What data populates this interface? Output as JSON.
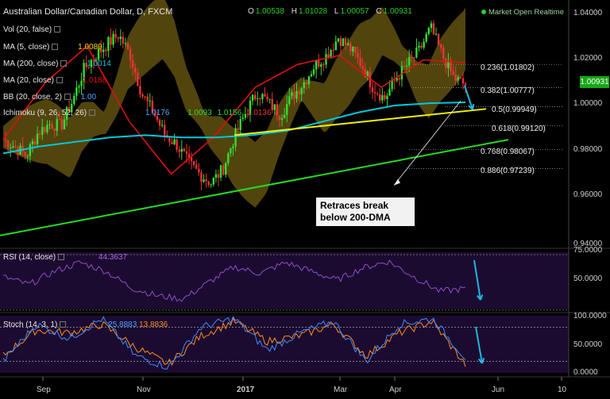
{
  "header": {
    "symbol_label": "Australian Dollar/Canadian Dollar, D, FXCM",
    "ohlc": [
      {
        "k": "O",
        "v": "1.00538"
      },
      {
        "k": "H",
        "v": "1.01028"
      },
      {
        "k": "L",
        "v": "1.00057"
      },
      {
        "k": "C",
        "v": "1.00931"
      }
    ],
    "market_status": "Market Open",
    "data_mode": "Realtime"
  },
  "indicators": {
    "vol": {
      "label": "Vol (20, false)"
    },
    "ma5": {
      "label": "MA (5, close)",
      "value": "1.0089",
      "color": "#ffd700"
    },
    "ma200": {
      "label": "MA (200, close)",
      "value": "1.0014",
      "color": "#00c8d8"
    },
    "ma20": {
      "label": "MA (20, close)",
      "value": "1.0188",
      "color": "#e01010"
    },
    "bb": {
      "label": "BB (20, close, 2)",
      "value": "1.00",
      "color": "#4aa3ff"
    },
    "ichimoku": {
      "label": "Ichimoku (9, 26, 52, 26)",
      "values": [
        "1.0176",
        "1.0093",
        "1.0156",
        "1.0136"
      ]
    },
    "rsi": {
      "label": "RSI (14, close)",
      "value": "44.3637"
    },
    "stoch": {
      "label": "Stoch (14, 3, 1)",
      "k_value": "25.8883",
      "d_value": "13.8836"
    }
  },
  "price_axis": {
    "ticks": [
      "1.04000",
      "1.02000",
      "1.00000",
      "0.98000",
      "0.96000",
      "0.94000"
    ],
    "current_price": "1.00931"
  },
  "rsi_axis": {
    "ticks": [
      "75.0000",
      "50.0000"
    ]
  },
  "stoch_axis": {
    "ticks": [
      "100.0000",
      "50.0000",
      "0.0000"
    ]
  },
  "time_axis": {
    "labels": [
      "Sep",
      "Nov",
      "2017",
      "Mar",
      "Apr",
      "Jun",
      "10"
    ]
  },
  "fibonacci": [
    {
      "label": "0.236(1.01802)"
    },
    {
      "label": "0.382(1.00777)"
    },
    {
      "label": "0.5(0.99949)"
    },
    {
      "label": "0.618(0.99120)"
    },
    {
      "label": "0.768(0.98067)"
    },
    {
      "label": "0.886(0.97239)"
    }
  ],
  "annotation": {
    "line1": "Retraces break",
    "line2": "below 200-DMA"
  },
  "colors": {
    "up": "#33dd33",
    "down": "#ee3333",
    "ma200": "#00c8d8",
    "ma20": "#e01010",
    "ma5": "#ffd700",
    "trend_green": "#22dd22",
    "trend_yellow": "#f2f20a",
    "cloud": "#6e5b12",
    "rsi_bg": "#1c0b30",
    "arrow": "#1fb6e0"
  },
  "chart_data": [
    {
      "type": "candlestick",
      "title": "Australian Dollar/Canadian Dollar, D, FXCM",
      "ylim": [
        0.94,
        1.045
      ],
      "x_labels": [
        "Sep",
        "Nov",
        "2017",
        "Mar",
        "Apr",
        "Jun",
        "10"
      ],
      "anchors_close": [
        [
          "Aug-22",
          0.985
        ],
        [
          "Aug-29",
          0.982
        ],
        [
          "Sep-05",
          0.978
        ],
        [
          "Sep-12",
          0.988
        ],
        [
          "Sep-19",
          0.992
        ],
        [
          "Sep-26",
          0.991
        ],
        [
          "Oct-03",
          1.002
        ],
        [
          "Oct-10",
          1.016
        ],
        [
          "Oct-17",
          1.022
        ],
        [
          "Oct-24",
          1.027
        ],
        [
          "Oct-31",
          1.031
        ],
        [
          "Nov-07",
          1.022
        ],
        [
          "Nov-14",
          1.005
        ],
        [
          "Nov-21",
          0.997
        ],
        [
          "Nov-28",
          0.987
        ],
        [
          "Dec-05",
          0.983
        ],
        [
          "Dec-12",
          0.975
        ],
        [
          "Dec-19",
          0.97
        ],
        [
          "Dec-26",
          0.966
        ],
        [
          "Jan-02",
          0.972
        ],
        [
          "Jan-09",
          0.986
        ],
        [
          "Jan-16",
          0.997
        ],
        [
          "Jan-23",
          1.006
        ],
        [
          "Jan-30",
          1.001
        ],
        [
          "Feb-06",
          0.996
        ],
        [
          "Feb-13",
          1.004
        ],
        [
          "Feb-20",
          1.01
        ],
        [
          "Feb-27",
          1.018
        ],
        [
          "Mar-06",
          1.022
        ],
        [
          "Mar-13",
          1.03
        ],
        [
          "Mar-20",
          1.025
        ],
        [
          "Mar-27",
          1.018
        ],
        [
          "Apr-03",
          1.008
        ],
        [
          "Apr-10",
          1.003
        ],
        [
          "Apr-17",
          1.012
        ],
        [
          "Apr-24",
          1.018
        ],
        [
          "May-01",
          1.024
        ],
        [
          "May-08",
          1.034
        ],
        [
          "May-15",
          1.022
        ],
        [
          "May-22",
          1.012
        ],
        [
          "May-29",
          1.009
        ]
      ],
      "series": [
        {
          "name": "MA (200, close)",
          "values": [
            0.979,
            0.982,
            0.984,
            0.986,
            0.987,
            0.986,
            0.986,
            0.987,
            0.989,
            0.993,
            0.997,
            1.0,
            1.001,
            1.0014
          ]
        },
        {
          "name": "MA (20, close)",
          "values": [
            0.985,
            1.01,
            1.026,
            0.993,
            0.97,
            0.986,
            1.008,
            1.018,
            1.022,
            1.008,
            1.02,
            1.0188
          ]
        }
      ],
      "trendlines": [
        {
          "color": "green",
          "from": [
            "Aug-15",
            0.943
          ],
          "to": [
            "Jun-10",
            0.985
          ]
        },
        {
          "color": "yellow",
          "from": [
            "Jan-09",
            0.987
          ],
          "to": [
            "Jun-05",
            0.9985
          ]
        }
      ],
      "fibonacci_levels": [
        1.01802,
        1.00777,
        0.99949,
        0.9912,
        0.98067,
        0.97239
      ]
    },
    {
      "type": "line",
      "title": "RSI (14, close)",
      "ylim": [
        25,
        80
      ],
      "series": [
        {
          "name": "RSI (14, close)",
          "values": [
            55,
            48,
            60,
            68,
            60,
            45,
            38,
            35,
            50,
            64,
            58,
            68,
            60,
            52,
            63,
            69,
            55,
            42,
            44.36
          ]
        }
      ]
    },
    {
      "type": "line",
      "title": "Stoch (14, 3, 1)",
      "ylim": [
        0,
        100
      ],
      "series": [
        {
          "name": "%K",
          "values": [
            20,
            85,
            60,
            95,
            30,
            10,
            80,
            95,
            40,
            70,
            90,
            20,
            85,
            95,
            25.89
          ]
        },
        {
          "name": "%D",
          "values": [
            30,
            75,
            70,
            85,
            45,
            15,
            65,
            90,
            55,
            65,
            85,
            30,
            70,
            90,
            13.88
          ]
        }
      ]
    }
  ]
}
